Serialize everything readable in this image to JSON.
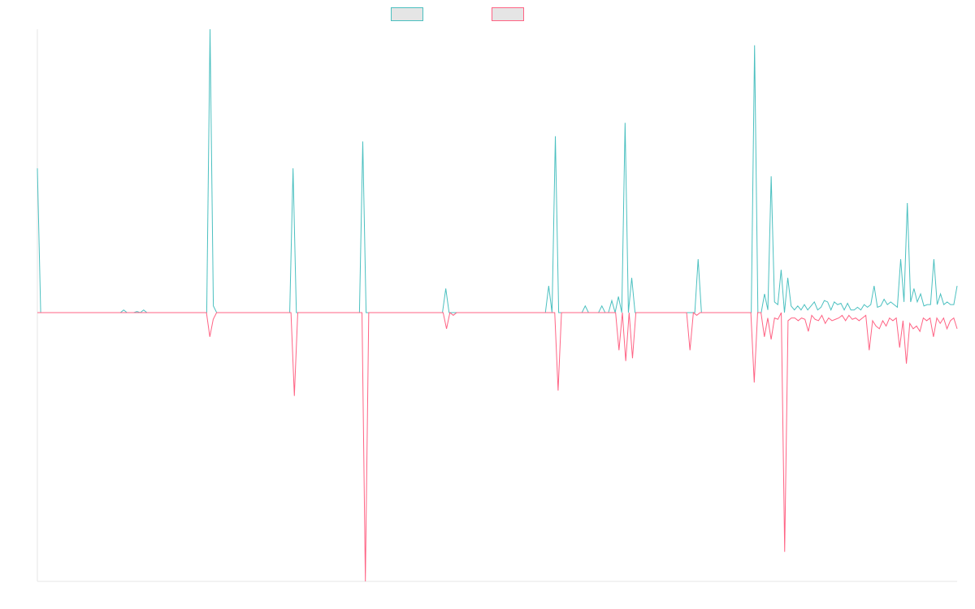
{
  "chart_data": {
    "type": "line",
    "title": "",
    "xlabel": "",
    "ylabel": "",
    "grid": false,
    "legend_position": "top-center",
    "x_count": 264,
    "ylim": [
      -1,
      1
    ],
    "series": [
      {
        "name": "",
        "color": "#4bc0c0",
        "fill": "#e5e5e5",
        "values": [
          0.54,
          0,
          0,
          0,
          0,
          0,
          0,
          0,
          0,
          0,
          0,
          0,
          0,
          0,
          0,
          0,
          0,
          0,
          0,
          0,
          0,
          0,
          0,
          0,
          0,
          0,
          0.01,
          0,
          0,
          0,
          0.004,
          0,
          0.01,
          0,
          0,
          0,
          0,
          0,
          0,
          0,
          0,
          0,
          0,
          0,
          0,
          0,
          0,
          0,
          0,
          0,
          0,
          0,
          1.06,
          0.025,
          0,
          0,
          0,
          0,
          0,
          0,
          0,
          0,
          0,
          0,
          0,
          0,
          0,
          0,
          0,
          0,
          0,
          0,
          0,
          0,
          0,
          0,
          0,
          0.54,
          0,
          0,
          0,
          0,
          0,
          0,
          0,
          0,
          0,
          0,
          0,
          0,
          0,
          0,
          0,
          0,
          0,
          0,
          0,
          0,
          0.64,
          0,
          0,
          0,
          0,
          0,
          0,
          0,
          0,
          0,
          0,
          0,
          0,
          0,
          0,
          0,
          0,
          0,
          0,
          0,
          0,
          0,
          0,
          0,
          0,
          0.09,
          0,
          0,
          0,
          0,
          0,
          0,
          0,
          0,
          0,
          0,
          0,
          0,
          0,
          0,
          0,
          0,
          0,
          0,
          0,
          0,
          0,
          0,
          0,
          0,
          0,
          0,
          0,
          0,
          0,
          0,
          0.1,
          0,
          0.66,
          0,
          0,
          0,
          0,
          0,
          0,
          0,
          0,
          0.025,
          0,
          0,
          0,
          0,
          0.025,
          0,
          0,
          0.045,
          0,
          0.06,
          0,
          0.71,
          0,
          0.13,
          0,
          0,
          0,
          0,
          0,
          0,
          0,
          0,
          0,
          0,
          0,
          0,
          0,
          0,
          0,
          0,
          0,
          0,
          0,
          0.2,
          0,
          0,
          0,
          0,
          0,
          0,
          0,
          0,
          0,
          0,
          0,
          0,
          0,
          0,
          0,
          0,
          1.0,
          0,
          0,
          0.07,
          0.01,
          0.51,
          0.04,
          0.03,
          0.16,
          0,
          0.13,
          0.025,
          0.01,
          0.025,
          0.01,
          0.03,
          0.01,
          0.025,
          0.04,
          0.01,
          0.02,
          0.045,
          0.04,
          0.01,
          0.04,
          0.03,
          0.035,
          0.01,
          0.035,
          0.01,
          0.01,
          0.02,
          0.01,
          0.03,
          0.02,
          0.03,
          0.1,
          0.02,
          0.025,
          0.05,
          0.03,
          0.04,
          0.03,
          0.02,
          0.2,
          0.04,
          0.41,
          0.04,
          0.09,
          0.04,
          0.07,
          0.025,
          0.03,
          0.03,
          0.2,
          0.03,
          0.07,
          0.03,
          0.04,
          0.03,
          0.03,
          0.1
        ]
      },
      {
        "name": "",
        "color": "#ff6384",
        "fill": "#e5e5e5",
        "values": [
          0,
          0,
          0,
          0,
          0,
          0,
          0,
          0,
          0,
          0,
          0,
          0,
          0,
          0,
          0,
          0,
          0,
          0,
          0,
          0,
          0,
          0,
          0,
          0,
          0,
          0,
          0,
          0,
          0,
          0,
          0,
          0,
          0,
          0,
          0,
          0,
          0,
          0,
          0,
          0,
          0,
          0,
          0,
          0,
          0,
          0,
          0,
          0,
          0,
          0,
          0,
          -0.09,
          -0.025,
          0,
          0,
          0,
          0,
          0,
          0,
          0,
          0,
          0,
          0,
          0,
          0,
          0,
          0,
          0,
          0,
          0,
          0,
          0,
          0,
          0,
          0,
          0,
          -0.31,
          0,
          0,
          0,
          0,
          0,
          0,
          0,
          0,
          0,
          0,
          0,
          0,
          0,
          0,
          0,
          0,
          0,
          0,
          0,
          0,
          -1.0,
          0,
          0,
          0,
          0,
          0,
          0,
          0,
          0,
          0,
          0,
          0,
          0,
          0,
          0,
          0,
          0,
          0,
          0,
          0,
          0,
          0,
          0,
          0,
          -0.06,
          0,
          -0.01,
          0,
          0,
          0,
          0,
          0,
          0,
          0,
          0,
          0,
          0,
          0,
          0,
          0,
          0,
          0,
          0,
          0,
          0,
          0,
          0,
          0,
          0,
          0,
          0,
          0,
          0,
          0,
          0,
          0,
          0,
          -0.29,
          0,
          0,
          0,
          0,
          0,
          0,
          0,
          0,
          0,
          0,
          0,
          0,
          0,
          0,
          0,
          0,
          0,
          -0.14,
          0,
          -0.18,
          0,
          -0.17,
          0,
          0,
          0,
          0,
          0,
          0,
          0,
          0,
          0,
          0,
          0,
          0,
          0,
          0,
          0,
          0,
          -0.14,
          0,
          -0.01,
          0,
          0,
          0,
          0,
          0,
          0,
          0,
          0,
          0,
          0,
          0,
          0,
          0,
          0,
          0,
          0,
          -0.26,
          0,
          0,
          -0.09,
          -0.02,
          -0.1,
          -0.02,
          -0.025,
          0,
          -0.89,
          -0.03,
          -0.02,
          -0.02,
          -0.03,
          -0.02,
          -0.025,
          -0.07,
          -0.01,
          -0.025,
          -0.03,
          -0.01,
          -0.04,
          -0.02,
          -0.03,
          -0.025,
          -0.02,
          -0.01,
          -0.03,
          -0.01,
          -0.025,
          -0.02,
          -0.03,
          -0.02,
          -0.01,
          -0.14,
          -0.03,
          -0.05,
          -0.06,
          -0.03,
          -0.05,
          -0.02,
          -0.03,
          -0.02,
          -0.13,
          -0.03,
          -0.19,
          -0.04,
          -0.06,
          -0.05,
          -0.07,
          -0.02,
          -0.03,
          -0.02,
          -0.09,
          -0.02,
          -0.04,
          -0.02,
          -0.06,
          -0.03,
          -0.02,
          -0.06
        ]
      }
    ]
  }
}
